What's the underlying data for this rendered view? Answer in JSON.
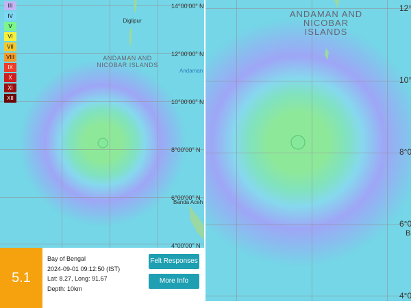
{
  "legend": [
    {
      "label": "III",
      "color": "#c4b5f5"
    },
    {
      "label": "IV",
      "color": "#7fd8f5"
    },
    {
      "label": "V",
      "color": "#7cf58a"
    },
    {
      "label": "VI",
      "color": "#f5f03c"
    },
    {
      "label": "VII",
      "color": "#f5c830"
    },
    {
      "label": "VIII",
      "color": "#f59a28"
    },
    {
      "label": "IX",
      "color": "#f03c28"
    },
    {
      "label": "X",
      "color": "#d01e1e"
    },
    {
      "label": "XI",
      "color": "#9a1010"
    },
    {
      "label": "XII",
      "color": "#6a0808"
    }
  ],
  "left_map": {
    "places": [
      "al",
      "Diglipur",
      "ANDAMAN AND NICOBAR ISLANDS",
      "Andaman",
      "Banda Aceh"
    ],
    "latitudes": [
      "14°00'00\" N",
      "12°00'00\" N",
      "10°00'00\" N",
      "8°00'00\" N",
      "6°00'00\" N",
      "4°00'00\" N"
    ]
  },
  "right_map": {
    "places": [
      "ANDAMAN AND NICOBAR ISLANDS",
      "Banda Aceh"
    ],
    "latitudes": [
      "12°00'00\" N",
      "10°00'00\" N",
      "8°00'00\" N",
      "6°00'00\" N",
      "4°00'00\" N"
    ]
  },
  "card": {
    "magnitude": "5.1",
    "region": "Bay of Bengal",
    "time": "2024-09-01 09:12:50 (IST)",
    "location": "Lat: 8.27, Long: 91.67",
    "depth": "Depth: 10km",
    "buttons": [
      "Felt Responses",
      "More Info"
    ]
  }
}
